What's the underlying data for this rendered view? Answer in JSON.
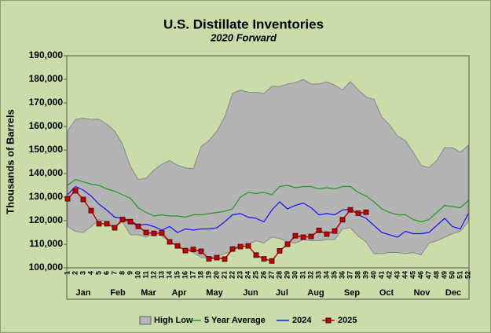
{
  "chart_data": {
    "type": "line",
    "title": "U.S. Distillate Inventories",
    "subtitle": "2020 Forward",
    "y_label": "Thousands of Barrels",
    "categories": [
      1,
      2,
      3,
      4,
      5,
      6,
      7,
      8,
      9,
      10,
      11,
      12,
      13,
      14,
      15,
      16,
      17,
      18,
      19,
      20,
      21,
      22,
      23,
      24,
      25,
      26,
      27,
      28,
      29,
      30,
      31,
      32,
      33,
      34,
      35,
      36,
      37,
      38,
      39,
      40,
      41,
      42,
      43,
      44,
      45,
      46,
      47,
      48,
      49,
      50,
      51,
      52
    ],
    "month_labels": [
      "Jan",
      "Feb",
      "Mar",
      "Apr",
      "May",
      "Jun",
      "Jul",
      "Aug",
      "Sep",
      "Oct",
      "Nov",
      "Dec"
    ],
    "ylim": [
      100000,
      190000
    ],
    "yticks": [
      {
        "value": 100000,
        "label": "100,000"
      },
      {
        "value": 110000,
        "label": "110,000"
      },
      {
        "value": 120000,
        "label": "120,000"
      },
      {
        "value": 130000,
        "label": "130,000"
      },
      {
        "value": 140000,
        "label": "140,000"
      },
      {
        "value": 150000,
        "label": "150,000"
      },
      {
        "value": 160000,
        "label": "160,000"
      },
      {
        "value": 170000,
        "label": "170,000"
      },
      {
        "value": 180000,
        "label": "180,000"
      },
      {
        "value": 190000,
        "label": "190,000"
      }
    ],
    "band": {
      "name": "High Low",
      "color": "#b4b4b4",
      "high": [
        158000,
        163000,
        163500,
        163000,
        163000,
        161000,
        158000,
        152500,
        143000,
        137500,
        138000,
        141500,
        144000,
        145500,
        143500,
        142500,
        142000,
        151500,
        154000,
        158000,
        164000,
        174000,
        175500,
        174500,
        174500,
        174000,
        177000,
        177000,
        178000,
        178500,
        180000,
        178000,
        178000,
        179000,
        177500,
        175500,
        179000,
        175500,
        172500,
        171500,
        164000,
        160500,
        156000,
        154000,
        149000,
        143500,
        142500,
        145500,
        151000,
        151000,
        149000,
        152000
      ],
      "low": [
        117500,
        115500,
        115000,
        117500,
        120500,
        119500,
        117500,
        119500,
        114000,
        114000,
        113000,
        114500,
        113500,
        111000,
        109000,
        107500,
        106500,
        104500,
        104000,
        105000,
        106000,
        107000,
        109500,
        110000,
        111500,
        110500,
        113000,
        112500,
        111000,
        110500,
        112000,
        111500,
        111500,
        112000,
        112000,
        116500,
        117000,
        113500,
        111000,
        106000,
        106000,
        106500,
        106500,
        106000,
        106500,
        105500,
        110500,
        111500,
        113000,
        114500,
        115500,
        119500
      ]
    },
    "series": [
      {
        "name": "5 Year Average",
        "color": "#229922",
        "values": [
          135000,
          137500,
          136500,
          135500,
          135000,
          133500,
          132500,
          131000,
          129500,
          125500,
          123500,
          122000,
          122500,
          122000,
          122000,
          121500,
          122500,
          122500,
          123000,
          123500,
          124000,
          125000,
          130000,
          132000,
          131500,
          132000,
          131000,
          134500,
          135000,
          134000,
          134500,
          134500,
          133500,
          134000,
          133500,
          134500,
          134500,
          132000,
          130500,
          128000,
          125000,
          123500,
          122500,
          122500,
          120500,
          119500,
          120500,
          123500,
          126500,
          126000,
          125500,
          128500
        ]
      },
      {
        "name": "2024",
        "color": "#1515f0",
        "values": [
          131000,
          134500,
          133000,
          130500,
          127000,
          124500,
          121500,
          121000,
          120000,
          118000,
          118500,
          117500,
          116000,
          117500,
          115000,
          116500,
          116000,
          116500,
          116500,
          117000,
          119500,
          122500,
          123000,
          121500,
          121000,
          119500,
          124500,
          128000,
          125000,
          126500,
          127500,
          125500,
          122500,
          123000,
          122500,
          124500,
          125000,
          122500,
          121000,
          118000,
          115000,
          114000,
          113000,
          115500,
          114500,
          114500,
          115000,
          118000,
          121000,
          117500,
          116500,
          123000
        ]
      },
      {
        "name": "2025",
        "color": "#c00000",
        "markers": true,
        "values": [
          129300,
          132700,
          129000,
          124300,
          118700,
          118700,
          117000,
          120500,
          119600,
          117600,
          115000,
          114600,
          114800,
          111000,
          109300,
          107300,
          107800,
          107000,
          103800,
          104300,
          103700,
          108000,
          109000,
          109300,
          105400,
          103800,
          102900,
          107200,
          110000,
          113600,
          113000,
          113300,
          115900,
          114300,
          115600,
          120400,
          124600,
          123200,
          123600,
          null,
          null,
          null,
          null,
          null,
          null,
          null,
          null,
          null,
          null,
          null,
          null,
          null
        ]
      }
    ]
  }
}
